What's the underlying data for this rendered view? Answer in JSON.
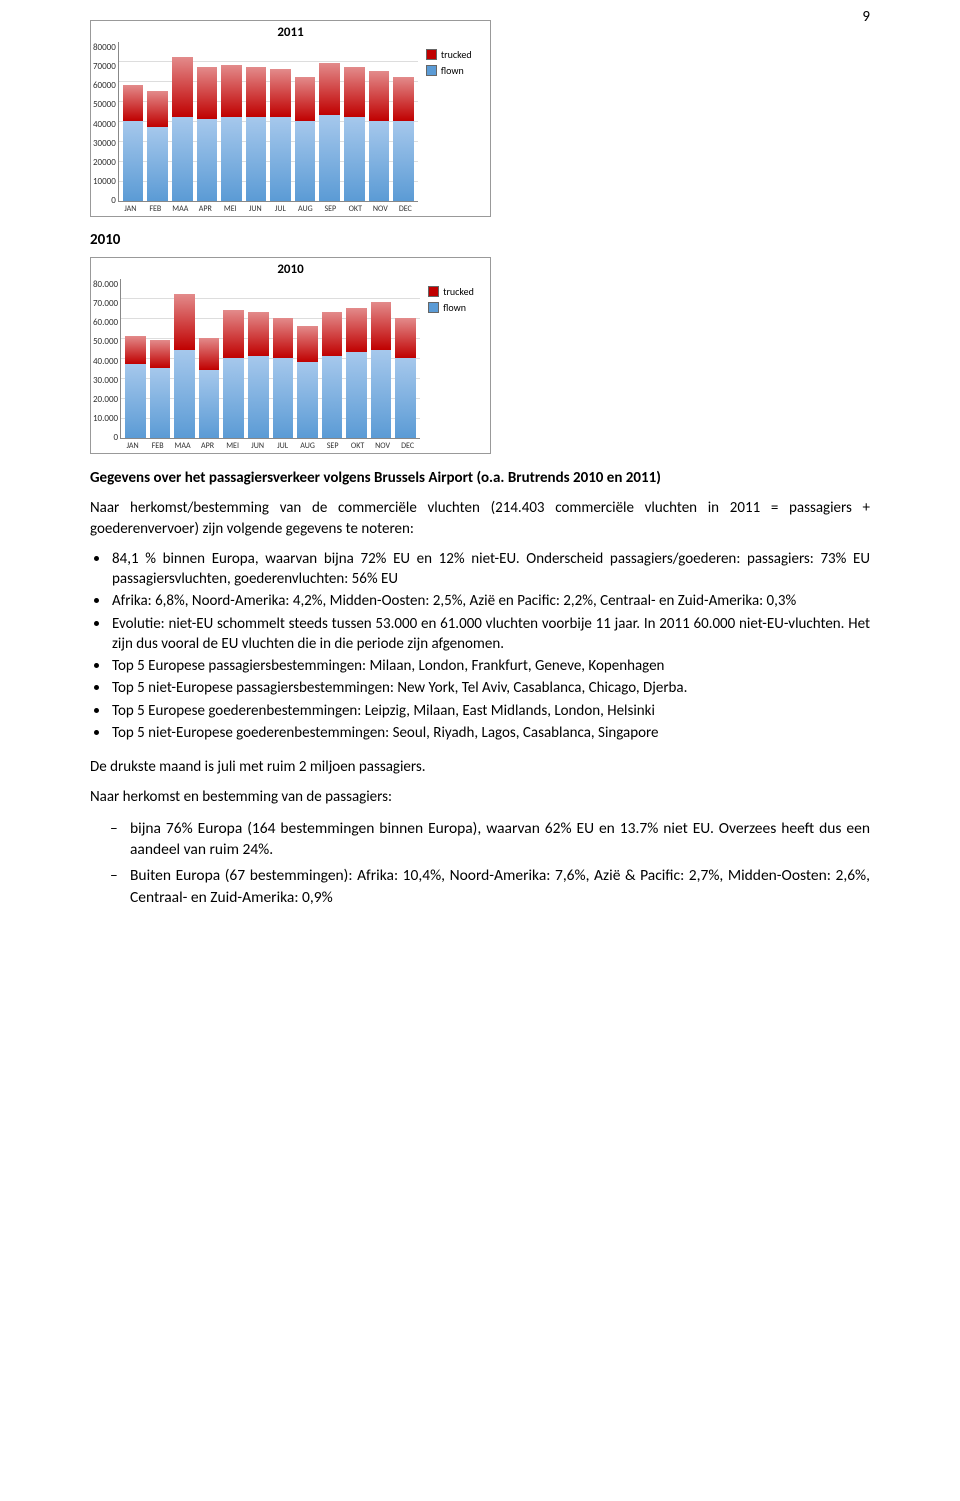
{
  "page_number": "9",
  "section_label": "2010",
  "chart_2011": {
    "type": "bar",
    "title": "2011",
    "categories": [
      "JAN",
      "FEB",
      "MAA",
      "APR",
      "MEI",
      "JUN",
      "JUL",
      "AUG",
      "SEP",
      "OKT",
      "NOV",
      "DEC"
    ],
    "flown": [
      40000,
      37000,
      42000,
      41000,
      42000,
      42000,
      42000,
      40000,
      43000,
      42000,
      40000,
      40000
    ],
    "trucked": [
      18000,
      18000,
      30000,
      26000,
      26000,
      25000,
      24000,
      22000,
      26000,
      25000,
      25000,
      22000
    ],
    "colors": {
      "flown": "#5b9bd5",
      "trucked": "#c00000"
    },
    "colors_light": {
      "flown": "#a6c8ec",
      "trucked": "#e38b8b"
    },
    "ymax": 80000,
    "ytick_step": 10000,
    "yticks": [
      "80000",
      "70000",
      "60000",
      "50000",
      "40000",
      "30000",
      "20000",
      "10000",
      "0"
    ],
    "legend": [
      {
        "key": "trucked",
        "label": "trucked"
      },
      {
        "key": "flown",
        "label": "flown"
      }
    ],
    "background_color": "#ffffff",
    "grid_color": "#dddddd",
    "axis_fontsize": 8,
    "title_fontsize": 13
  },
  "chart_2010": {
    "type": "bar",
    "title": "2010",
    "categories": [
      "JAN",
      "FEB",
      "MAA",
      "APR",
      "MEI",
      "JUN",
      "JUL",
      "AUG",
      "SEP",
      "OKT",
      "NOV",
      "DEC"
    ],
    "flown": [
      37000,
      35000,
      44000,
      34000,
      40000,
      41000,
      40000,
      38000,
      41000,
      43000,
      44000,
      40000
    ],
    "trucked": [
      14000,
      14000,
      28000,
      16000,
      24000,
      22000,
      20000,
      18000,
      22000,
      22000,
      24000,
      20000
    ],
    "colors": {
      "flown": "#5b9bd5",
      "trucked": "#c00000"
    },
    "colors_light": {
      "flown": "#a6c8ec",
      "trucked": "#e38b8b"
    },
    "ymax": 80000,
    "ytick_step": 10000,
    "yticks": [
      "80.000",
      "70.000",
      "60.000",
      "50.000",
      "40.000",
      "30.000",
      "20.000",
      "10.000",
      "0"
    ],
    "legend": [
      {
        "key": "trucked",
        "label": "trucked"
      },
      {
        "key": "flown",
        "label": "flown"
      }
    ],
    "background_color": "#ffffff",
    "grid_color": "#dddddd",
    "axis_fontsize": 8,
    "title_fontsize": 13
  },
  "heading": "Gegevens over het passagiersverkeer volgens Brussels Airport (o.a. Brutrends 2010 en 2011)",
  "intro": "Naar herkomst/bestemming van de commerciële vluchten (214.403 commerciële vluchten in 2011 = passagiers + goederenvervoer) zijn volgende gegevens te noteren:",
  "bullets": [
    "84,1 % binnen Europa, waarvan bijna 72% EU en 12% niet-EU. Onderscheid passagiers/goederen: passagiers: 73% EU passagiersvluchten, goederenvluchten: 56% EU",
    "Afrika: 6,8%, Noord-Amerika: 4,2%, Midden-Oosten: 2,5%, Azië en Pacific: 2,2%, Centraal- en Zuid-Amerika: 0,3%",
    "Evolutie: niet-EU schommelt steeds tussen 53.000 en 61.000 vluchten voorbije 11 jaar. In 2011 60.000 niet-EU-vluchten. Het zijn dus vooral de EU vluchten die in die periode zijn afgenomen.",
    "Top 5 Europese passagiersbestemmingen: Milaan, London, Frankfurt, Geneve, Kopenhagen",
    "Top 5 niet-Europese passagiersbestemmingen: New York, Tel Aviv, Casablanca, Chicago, Djerba.",
    "Top 5 Europese goederenbestemmingen: Leipzig, Milaan, East Midlands, London, Helsinki",
    "Top 5 niet-Europese goederenbestemmingen: Seoul, Riyadh, Lagos, Casablanca, Singapore"
  ],
  "para_busiest": "De drukste maand is juli met ruim 2 miljoen passagiers.",
  "para_origin": "Naar herkomst en bestemming van de passagiers:",
  "dashes": [
    "bijna 76% Europa (164 bestemmingen binnen Europa), waarvan 62% EU en 13.7% niet EU. Overzees heeft dus een aandeel van ruim 24%.",
    "Buiten Europa (67 bestemmingen): Afrika: 10,4%, Noord-Amerika: 7,6%, Azië & Pacific: 2,7%, Midden-Oosten: 2,6%, Centraal- en Zuid-Amerika: 0,9%"
  ]
}
